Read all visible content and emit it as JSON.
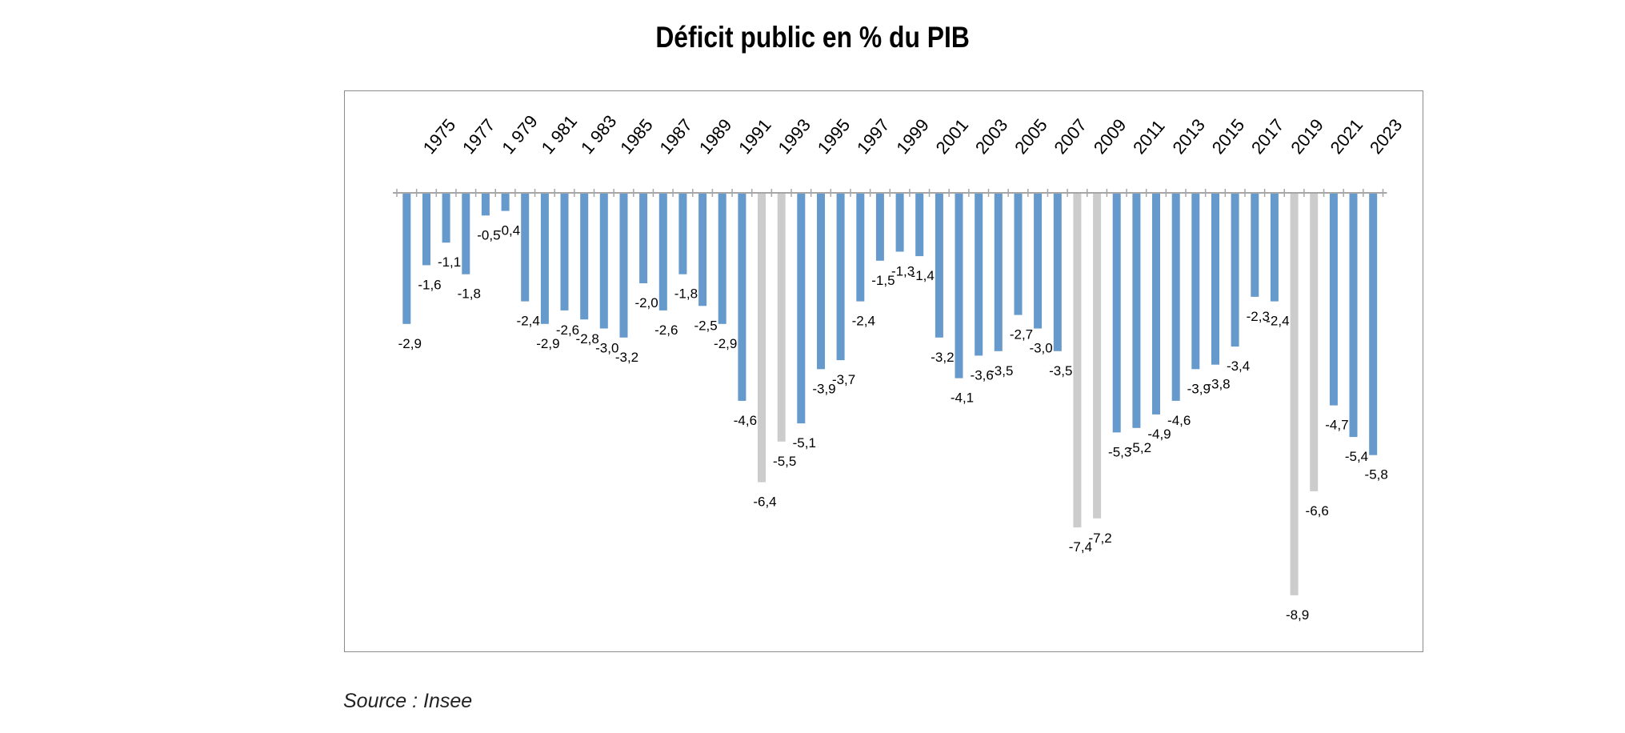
{
  "chart_data": {
    "type": "bar",
    "title": "Déficit public en % du PIB",
    "source": "Source : Insee",
    "xlabel": "",
    "ylabel": "",
    "ylim": [
      -9.5,
      0
    ],
    "grid": false,
    "legend": "none",
    "x_positions": [
      "1974",
      "1975",
      "1976",
      "1977",
      "1978",
      "1979",
      "1980",
      "1981",
      "1982",
      "1983",
      "1984",
      "1985",
      "1986",
      "1987",
      "1988",
      "1989",
      "1990",
      "1991",
      "1992",
      "1993",
      "1994",
      "1995",
      "1996",
      "1997",
      "1998",
      "1999",
      "2000",
      "2001",
      "2002",
      "2003",
      "2004",
      "2005",
      "2006",
      "2007",
      "2008",
      "2009",
      "2010",
      "2011",
      "2012",
      "2013",
      "2014",
      "2015",
      "2016",
      "2017",
      "2018",
      "2019",
      "2020",
      "2021",
      "2022",
      "2023"
    ],
    "tick_labels": [
      "1975",
      "1977",
      "1 979",
      "1 981",
      "1 983",
      "1985",
      "1987",
      "1989",
      "1991",
      "1993",
      "1995",
      "1997",
      "1999",
      "2001",
      "2003",
      "2005",
      "2007",
      "2009",
      "2011",
      "2013",
      "2015",
      "2017",
      "2019",
      "2021",
      "2023"
    ],
    "values": [
      -2.9,
      -1.6,
      -1.1,
      -1.8,
      -0.5,
      -0.4,
      -2.4,
      -2.9,
      -2.6,
      -2.8,
      -3.0,
      -3.2,
      -2.0,
      -2.6,
      -1.8,
      -2.5,
      -2.9,
      -4.6,
      -6.4,
      -5.5,
      -5.1,
      -3.9,
      -3.7,
      -2.4,
      -1.5,
      -1.3,
      -1.4,
      -3.2,
      -4.1,
      -3.6,
      -3.5,
      -2.7,
      -3.0,
      -3.5,
      -7.4,
      -7.2,
      -5.3,
      -5.2,
      -4.9,
      -4.6,
      -3.9,
      -3.8,
      -3.4,
      -2.3,
      -2.4,
      -8.9,
      -6.6,
      -4.7,
      -5.4,
      -5.8
    ],
    "value_labels": [
      "-2,9",
      "-1,6",
      "-1,1",
      "-1,8",
      "-0,5",
      "-0,4",
      "-2,4",
      "-2,9",
      "-2,6",
      "-2,8",
      "-3,0",
      "-3,2",
      "-2,0",
      "-2,6",
      "-1,8",
      "-2,5",
      "-2,9",
      "-4,6",
      "-6,4",
      "-5,5",
      "-5,1",
      "-3,9",
      "-3,7",
      "-2,4",
      "-1,5",
      "-1,3",
      "-1,4",
      "-3,2",
      "-4,1",
      "-3,6",
      "-3,5",
      "-2,7",
      "-3,0",
      "-3,5",
      "-7,4",
      "-7,2",
      "-5,3",
      "-5,2",
      "-4,9",
      "-4,6",
      "-3,9",
      "-3,8",
      "-3,4",
      "-2,3",
      "-2,4",
      "-8,9",
      "-6,6",
      "-4,7",
      "-5,4",
      "-5,8"
    ],
    "highlighted": [
      "1992",
      "1993",
      "2008",
      "2009",
      "2019",
      "2020"
    ],
    "colors": {
      "normal": "#6699cc",
      "highlighted": "#cccccc",
      "axis": "#a6a6a6"
    }
  }
}
